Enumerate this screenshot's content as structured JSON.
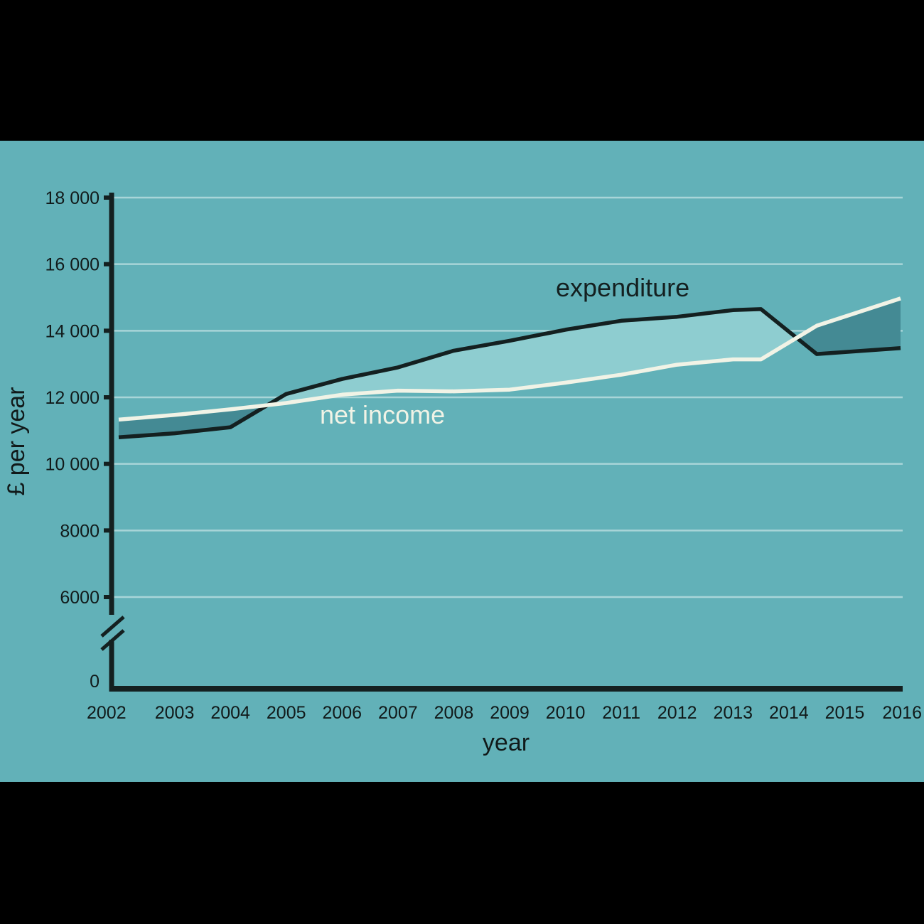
{
  "chart_data": {
    "type": "line",
    "title": "",
    "xlabel": "year",
    "ylabel": "£ per year",
    "x": [
      2002,
      2003,
      2004,
      2005,
      2006,
      2007,
      2008,
      2009,
      2010,
      2011,
      2012,
      2013,
      2014,
      2015,
      2016
    ],
    "x_tick_labels": [
      "2002",
      "2003",
      "2004",
      "2005",
      "2006",
      "2007",
      "2008",
      "2009",
      "2010",
      "2011",
      "2012",
      "2013",
      "2014",
      "2015",
      "2016"
    ],
    "y_ticks": [
      0,
      6000,
      8000,
      10000,
      12000,
      14000,
      16000,
      18000
    ],
    "y_tick_labels": [
      "0",
      "6000",
      "8000",
      "10 000",
      "12 000",
      "14 000",
      "16 000",
      "18 000"
    ],
    "y_axis_break": [
      0,
      6000
    ],
    "ylim": [
      0,
      18000
    ],
    "grid": true,
    "series": [
      {
        "name": "expenditure",
        "label": "expenditure",
        "color": "#142020",
        "points": [
          [
            2002,
            10800
          ],
          [
            2003,
            10920
          ],
          [
            2004,
            11100
          ],
          [
            2005,
            12100
          ],
          [
            2006,
            12550
          ],
          [
            2007,
            12900
          ],
          [
            2008,
            13400
          ],
          [
            2009,
            13700
          ],
          [
            2010,
            14030
          ],
          [
            2011,
            14300
          ],
          [
            2012,
            14420
          ],
          [
            2013,
            14620
          ],
          [
            2013.5,
            14650
          ],
          [
            2014.5,
            13300
          ],
          [
            2016,
            13480
          ]
        ]
      },
      {
        "name": "net income",
        "label": "net income",
        "color": "#f1f3e6",
        "points": [
          [
            2002,
            11330
          ],
          [
            2003,
            11470
          ],
          [
            2004,
            11640
          ],
          [
            2005,
            11830
          ],
          [
            2006,
            12080
          ],
          [
            2007,
            12200
          ],
          [
            2008,
            12180
          ],
          [
            2009,
            12230
          ],
          [
            2010,
            12440
          ],
          [
            2011,
            12680
          ],
          [
            2012,
            12980
          ],
          [
            2013,
            13140
          ],
          [
            2013.5,
            13140
          ],
          [
            2014.5,
            14150
          ],
          [
            2016,
            14970
          ]
        ]
      }
    ],
    "fill_colors": {
      "expenditure_above_income": "#8ecdd0",
      "income_above_expenditure": "#448a94"
    }
  }
}
